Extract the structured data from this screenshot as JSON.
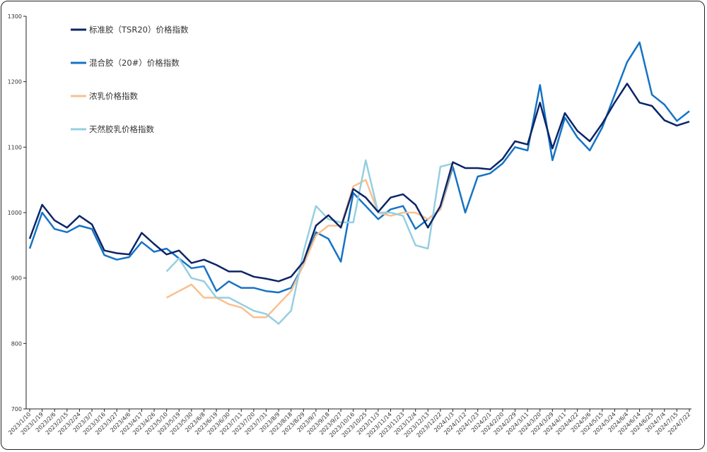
{
  "chart_data": {
    "type": "line",
    "title": "",
    "xlabel": "",
    "ylabel": "",
    "ylim": [
      700,
      1300
    ],
    "yticks": [
      700,
      800,
      900,
      1000,
      1100,
      1200,
      1300
    ],
    "legend_position": "top-left",
    "categories": [
      "2023/1/10",
      "2023/1/19",
      "2023/2/6",
      "2023/2/15",
      "2023/2/24",
      "2023/3/7",
      "2023/3/16",
      "2023/3/27",
      "2023/4/6",
      "2023/4/17",
      "2023/4/26",
      "2023/5/10",
      "2023/5/19",
      "2023/5/30",
      "2023/6/8",
      "2023/6/19",
      "2023/6/30",
      "2023/7/11",
      "2023/7/20",
      "2023/7/31",
      "2023/8/9",
      "2023/8/18",
      "2023/8/29",
      "2023/9/7",
      "2023/9/18",
      "2023/9/27",
      "2023/10/16",
      "2023/10/25",
      "2023/11/3",
      "2023/11/14",
      "2023/11/23",
      "2023/12/4",
      "2023/12/13",
      "2023/12/22",
      "2024/1/3",
      "2024/1/12",
      "2024/1/23",
      "2024/2/1",
      "2024/2/20",
      "2024/2/29",
      "2024/3/11",
      "2024/3/20",
      "2024/3/29",
      "2024/4/11",
      "2024/4/22",
      "2024/5/6",
      "2024/5/15",
      "2024/5/24",
      "2024/6/4",
      "2024/6/14",
      "2024/6/25",
      "2024/7/4",
      "2024/7/15",
      "2024/7/22"
    ],
    "series": [
      {
        "name": "标准胶（TSR20）价格指数",
        "color": "#0b2566",
        "values": [
          960,
          1012,
          988,
          977,
          995,
          982,
          942,
          938,
          936,
          969,
          952,
          936,
          942,
          923,
          928,
          920,
          910,
          910,
          902,
          899,
          895,
          902,
          925,
          980,
          996,
          977,
          1036,
          1023,
          1001,
          1023,
          1028,
          1012,
          977,
          1010,
          1077,
          1068,
          1068,
          1066,
          1082,
          1109,
          1104,
          1168,
          1098,
          1152,
          1125,
          1109,
          1136,
          1168,
          1197,
          1168,
          1163,
          1141,
          1133,
          1139
        ]
      },
      {
        "name": "混合胶（20#）价格指数",
        "color": "#1673c4",
        "values": [
          945,
          1000,
          975,
          970,
          980,
          975,
          935,
          928,
          932,
          955,
          940,
          945,
          930,
          915,
          918,
          880,
          895,
          885,
          885,
          880,
          878,
          885,
          920,
          970,
          960,
          925,
          1030,
          1010,
          990,
          1005,
          1010,
          975,
          990,
          1005,
          1070,
          1000,
          1055,
          1060,
          1075,
          1100,
          1095,
          1195,
          1080,
          1145,
          1115,
          1095,
          1130,
          1180,
          1230,
          1260,
          1180,
          1165,
          1140,
          1155
        ]
      },
      {
        "name": "浓乳价格指数",
        "color": "#f9c08f",
        "values": [
          null,
          null,
          null,
          null,
          null,
          null,
          null,
          null,
          null,
          null,
          null,
          870,
          880,
          890,
          870,
          870,
          860,
          855,
          840,
          840,
          860,
          880,
          920,
          965,
          980,
          980,
          1040,
          1050,
          1000,
          995,
          1000,
          1000,
          990,
          1005,
          1075,
          null,
          null,
          null,
          null,
          null,
          null,
          null,
          null,
          null,
          null,
          null,
          null,
          null,
          null,
          null,
          null,
          null,
          null,
          null
        ]
      },
      {
        "name": "天然胶乳价格指数",
        "color": "#95cfe0",
        "values": [
          null,
          null,
          null,
          null,
          null,
          null,
          null,
          null,
          null,
          null,
          null,
          910,
          930,
          900,
          895,
          870,
          870,
          860,
          850,
          845,
          830,
          850,
          940,
          1010,
          990,
          985,
          985,
          1080,
          1000,
          1000,
          995,
          950,
          945,
          1070,
          1075,
          null,
          null,
          null,
          null,
          null,
          null,
          null,
          null,
          null,
          null,
          null,
          null,
          null,
          null,
          null,
          null,
          null,
          null,
          null
        ]
      }
    ]
  }
}
